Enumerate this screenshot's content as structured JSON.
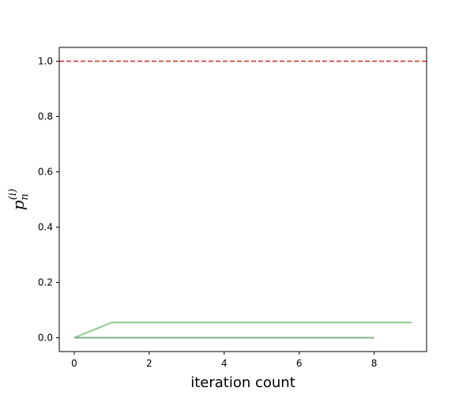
{
  "chart_data": {
    "type": "line",
    "title": "",
    "xlabel": "iteration count",
    "ylabel": {
      "base": "p",
      "sub": "n",
      "sup": "(i)"
    },
    "xlim": [
      -0.4,
      9.4
    ],
    "ylim": [
      -0.05,
      1.05
    ],
    "xticks": [
      0,
      2,
      4,
      6,
      8
    ],
    "yticks": [
      0.0,
      0.2,
      0.4,
      0.6,
      0.8,
      1.0
    ],
    "grid": false,
    "legend": "none",
    "reference_line": {
      "y": 1.0,
      "style": "dashed",
      "color": "#d62728"
    },
    "series": [
      {
        "x": [
          0,
          1,
          2,
          3,
          4,
          5,
          6,
          7,
          8,
          9
        ],
        "y": [
          0.0,
          0.055,
          0.055,
          0.055,
          0.055,
          0.055,
          0.055,
          0.055,
          0.055,
          0.055
        ],
        "color": "#8cc98c"
      },
      {
        "x": [
          0,
          1,
          2,
          3,
          4,
          5,
          6,
          7,
          8
        ],
        "y": [
          0.0,
          0.0,
          0.0,
          0.0,
          0.0,
          0.0,
          0.0,
          0.0,
          0.0
        ],
        "color": "#4a8ea0"
      },
      {
        "x": [
          0,
          1,
          2,
          3,
          4,
          5,
          6,
          7,
          8
        ],
        "y": [
          0.0,
          0.0,
          0.0,
          0.0,
          0.0,
          0.0,
          0.0,
          0.0,
          0.0
        ],
        "color": "#7fb08a"
      }
    ]
  }
}
